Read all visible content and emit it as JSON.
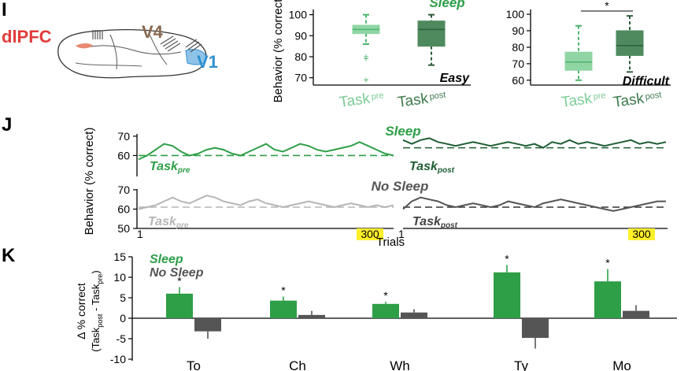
{
  "colors": {
    "sleep": "#2e9e47",
    "sleep_dark": "#1e5e33",
    "sleep_light": "#8fd6a4",
    "sleep_box_dark": "#4e8a5e",
    "nosleep": "#555555",
    "nosleep_light": "#b5b5b5",
    "highlight": "#ffef2a"
  },
  "panel_I": {
    "label": "I",
    "brain": {
      "regions": [
        "dlPFC",
        "V4",
        "V1"
      ],
      "region_colors": [
        "#e23b3b",
        "#8a6a52",
        "#2f8fd0"
      ]
    },
    "sleep_title": "Sleep",
    "ylabel": "Behavior (% correct)",
    "x_pre": "Task",
    "x_pre_sub": "pre",
    "x_post": "Task",
    "x_post_sub": "post",
    "significance": "*"
  },
  "panel_J": {
    "label": "J",
    "ylabel": "Behavior (% correct)",
    "xlabel": "Trials",
    "sleep_title": "Sleep",
    "nosleep_title": "No Sleep",
    "task_pre": "Task",
    "task_pre_sub": "pre",
    "task_post": "Task",
    "task_post_sub": "post",
    "tick_start": "1",
    "tick_end": "300"
  },
  "panel_K": {
    "label": "K",
    "ylabel_main": "Δ % correct",
    "ylabel_sub": "(Task",
    "ylabel_post": "post",
    "ylabel_mid": " - Task",
    "ylabel_pre": "pre",
    "ylabel_end": ")",
    "legend_sleep": "Sleep",
    "legend_nosleep": "No Sleep",
    "star": "*"
  },
  "chart_data": [
    {
      "type": "box",
      "panel": "I-Easy",
      "label": "Easy",
      "categories": [
        "Task pre",
        "Task post"
      ],
      "ylim": [
        68,
        101
      ],
      "yticks": [
        70,
        80,
        90,
        100
      ],
      "boxes": [
        {
          "name": "Task pre",
          "whisker_low": 86,
          "q1": 91,
          "median": 93,
          "q3": 95,
          "whisker_high": 100,
          "outliers": [
            80,
            79,
            69
          ]
        },
        {
          "name": "Task post",
          "whisker_low": 76,
          "q1": 85,
          "median": 93,
          "q3": 97,
          "whisker_high": 100,
          "outliers": []
        }
      ]
    },
    {
      "type": "box",
      "panel": "I-Difficult",
      "label": "Difficult",
      "categories": [
        "Task pre",
        "Task post"
      ],
      "ylim": [
        58,
        101
      ],
      "yticks": [
        60,
        70,
        80,
        90,
        100
      ],
      "boxes": [
        {
          "name": "Task pre",
          "whisker_low": 60,
          "q1": 66,
          "median": 71,
          "q3": 77,
          "whisker_high": 93,
          "outliers": []
        },
        {
          "name": "Task post",
          "whisker_low": 65,
          "q1": 75,
          "median": 81,
          "q3": 90,
          "whisker_high": 99,
          "outliers": []
        }
      ],
      "significance": "*"
    },
    {
      "type": "line",
      "panel": "J-Sleep",
      "title": "Sleep",
      "ylim": [
        50,
        72
      ],
      "yticks": [
        60,
        70
      ],
      "series": [
        {
          "name": "Task pre",
          "baseline": 60,
          "values": [
            58,
            60,
            63,
            66,
            65,
            62,
            60,
            61,
            63,
            64,
            63,
            61,
            60,
            62,
            64,
            66,
            63,
            62,
            64,
            66,
            65,
            63,
            62,
            63,
            64,
            65,
            67,
            65,
            63,
            61,
            60
          ]
        },
        {
          "name": "Task post",
          "baseline": 64,
          "values": [
            68,
            66,
            68,
            69,
            67,
            66,
            65,
            66,
            67,
            66,
            65,
            66,
            67,
            66,
            65,
            66,
            64,
            67,
            66,
            68,
            66,
            67,
            66,
            65,
            66,
            67,
            68,
            66,
            67,
            66,
            67
          ]
        }
      ]
    },
    {
      "type": "line",
      "panel": "J-NoSleep",
      "title": "No Sleep",
      "ylim": [
        50,
        72
      ],
      "yticks": [
        50,
        60,
        70
      ],
      "series": [
        {
          "name": "Task pre",
          "baseline": 61,
          "values": [
            60,
            61,
            62,
            64,
            66,
            64,
            63,
            65,
            67,
            66,
            64,
            63,
            62,
            64,
            65,
            63,
            62,
            61,
            62,
            63,
            64,
            63,
            62,
            61,
            62,
            63,
            62,
            61,
            62,
            61,
            62
          ]
        },
        {
          "name": "Task post",
          "baseline": 61,
          "values": [
            60,
            64,
            66,
            65,
            64,
            62,
            61,
            62,
            63,
            62,
            61,
            62,
            64,
            63,
            62,
            61,
            63,
            64,
            65,
            64,
            63,
            62,
            61,
            60,
            59,
            60,
            61,
            62,
            63,
            64,
            64
          ]
        }
      ]
    },
    {
      "type": "bar",
      "panel": "K",
      "categories": [
        "To",
        "Ch",
        "Wh",
        "Ty",
        "Mo"
      ],
      "ylim": [
        -10,
        15
      ],
      "yticks": [
        -10,
        -5,
        0,
        5,
        10,
        15
      ],
      "series": [
        {
          "name": "Sleep",
          "values": [
            6.0,
            4.3,
            3.5,
            11.2,
            9.0
          ],
          "errors": [
            1.6,
            1.0,
            0.5,
            1.8,
            3.0
          ],
          "significant": [
            true,
            true,
            true,
            true,
            true
          ]
        },
        {
          "name": "No Sleep",
          "values": [
            -3.2,
            0.8,
            1.4,
            -4.8,
            1.8
          ],
          "errors": [
            1.8,
            1.0,
            0.8,
            2.6,
            1.4
          ],
          "significant": [
            false,
            false,
            false,
            false,
            false
          ]
        }
      ]
    }
  ]
}
